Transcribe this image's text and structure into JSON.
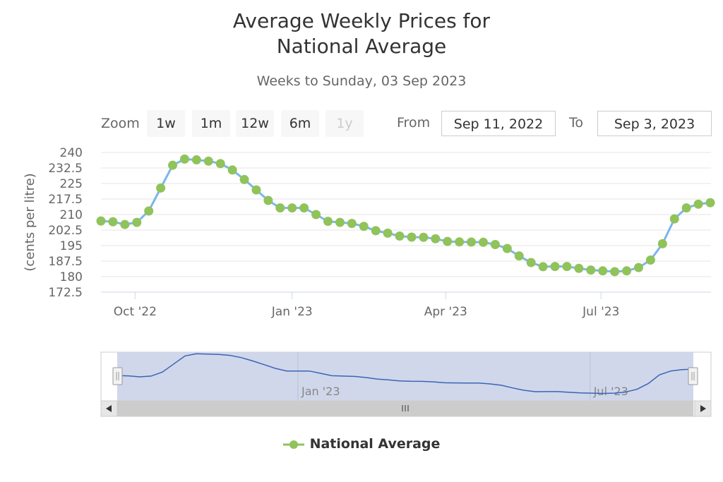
{
  "chart_data": {
    "type": "line",
    "title_lines": [
      "Average Weekly Prices for",
      "National Average"
    ],
    "subtitle": "Weeks to Sunday, 03 Sep 2023",
    "ylabel": "(cents per litre)",
    "ylim": [
      172.5,
      240
    ],
    "yticks": [
      "240",
      "232.5",
      "225",
      "217.5",
      "210",
      "202.5",
      "195",
      "187.5",
      "180",
      "172.5"
    ],
    "xticks": [
      "Oct '22",
      "Jan '23",
      "Apr '23",
      "Jul '23"
    ],
    "series": [
      {
        "name": "National Average",
        "x": [
          "2022-09-11",
          "2022-09-18",
          "2022-09-25",
          "2022-10-02",
          "2022-10-09",
          "2022-10-16",
          "2022-10-23",
          "2022-10-30",
          "2022-11-06",
          "2022-11-13",
          "2022-11-20",
          "2022-11-27",
          "2022-12-04",
          "2022-12-11",
          "2022-12-18",
          "2022-12-25",
          "2023-01-01",
          "2023-01-08",
          "2023-01-15",
          "2023-01-22",
          "2023-01-29",
          "2023-02-05",
          "2023-02-12",
          "2023-02-19",
          "2023-02-26",
          "2023-03-05",
          "2023-03-12",
          "2023-03-19",
          "2023-03-26",
          "2023-04-02",
          "2023-04-09",
          "2023-04-16",
          "2023-04-23",
          "2023-04-30",
          "2023-05-07",
          "2023-05-14",
          "2023-05-21",
          "2023-05-28",
          "2023-06-04",
          "2023-06-11",
          "2023-06-18",
          "2023-06-25",
          "2023-07-02",
          "2023-07-09",
          "2023-07-16",
          "2023-07-23",
          "2023-07-30",
          "2023-08-06",
          "2023-08-13",
          "2023-08-20",
          "2023-08-27",
          "2023-09-03"
        ],
        "values": [
          206.9,
          206.5,
          205.2,
          206.2,
          211.7,
          222.8,
          233.8,
          236.8,
          236.4,
          235.8,
          234.6,
          231.5,
          226.9,
          221.9,
          216.8,
          213.2,
          213.2,
          213.2,
          210.0,
          206.7,
          206.2,
          205.7,
          204.3,
          202.2,
          201.0,
          199.6,
          199.1,
          199.0,
          198.3,
          197.0,
          196.8,
          196.7,
          196.6,
          195.5,
          193.6,
          190.0,
          186.8,
          184.8,
          184.9,
          184.9,
          184.0,
          183.2,
          182.8,
          182.4,
          182.8,
          184.4,
          188.0,
          195.9,
          207.9,
          213.2,
          215.0,
          215.7
        ]
      }
    ],
    "colors": {
      "line": "#7cb5ec",
      "marker": "#90c35a",
      "navigator_fill": "#cdd5ea",
      "navigator_line": "#3c64b4"
    }
  },
  "controls": {
    "zoom_label": "Zoom",
    "zoom_buttons": [
      "1w",
      "1m",
      "12w",
      "6m",
      "1y"
    ],
    "from_label": "From",
    "from_value": "Sep 11, 2022",
    "to_label": "To",
    "to_value": "Sep 3, 2023"
  },
  "navigator": {
    "labels": [
      "Jan '23",
      "Jul '23"
    ],
    "scroll_left_icon": "arrow-left-icon",
    "scroll_right_icon": "arrow-right-icon",
    "scroll_grip_icon": "grip-icon",
    "handle_icon": "navigator-handle-icon"
  }
}
